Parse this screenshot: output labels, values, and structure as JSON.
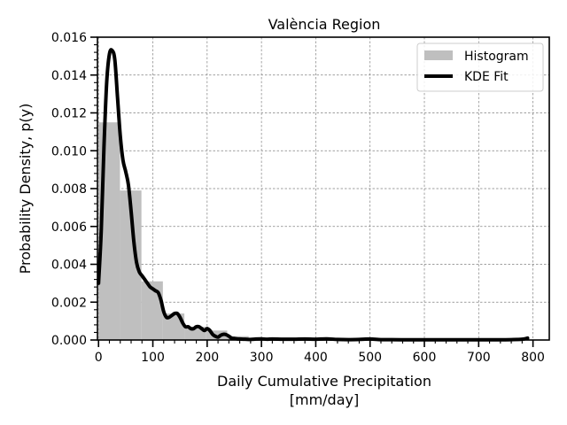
{
  "chart_data": {
    "type": "bar",
    "title": "València Region",
    "xlabel_line1": "Daily Cumulative Precipitation",
    "xlabel_line2": "[mm/day]",
    "ylabel": "Probability Density, p(y)",
    "xlim": [
      -2,
      830
    ],
    "ylim": [
      0,
      0.016
    ],
    "x_ticks": [
      0,
      100,
      200,
      300,
      400,
      500,
      600,
      700,
      800
    ],
    "x_tick_labels": [
      "0",
      "100",
      "200",
      "300",
      "400",
      "500",
      "600",
      "700",
      "800"
    ],
    "y_ticks": [
      0,
      0.002,
      0.004,
      0.006,
      0.008,
      0.01,
      0.012,
      0.014,
      0.016
    ],
    "y_tick_labels": [
      "0.000",
      "0.002",
      "0.004",
      "0.006",
      "0.008",
      "0.010",
      "0.012",
      "0.014",
      "0.016"
    ],
    "grid": true,
    "legend_position": "top-right",
    "histogram": {
      "name": "Histogram",
      "color": "#bfbfbf",
      "bins": [
        {
          "x0": 0,
          "x1": 39.5,
          "value": 0.0115
        },
        {
          "x0": 39.5,
          "x1": 79,
          "value": 0.0079
        },
        {
          "x0": 79,
          "x1": 118.5,
          "value": 0.0031
        },
        {
          "x0": 118.5,
          "x1": 158,
          "value": 0.0014
        },
        {
          "x0": 158,
          "x1": 197.5,
          "value": 0.0007
        },
        {
          "x0": 197.5,
          "x1": 237,
          "value": 0.0005
        },
        {
          "x0": 237,
          "x1": 276.5,
          "value": 0.0002
        },
        {
          "x0": 276.5,
          "x1": 316,
          "value": 0.0001
        },
        {
          "x0": 316,
          "x1": 355.5,
          "value": 5e-05
        },
        {
          "x0": 355.5,
          "x1": 395,
          "value": 4e-05
        },
        {
          "x0": 395,
          "x1": 434.5,
          "value": 5e-05
        },
        {
          "x0": 434.5,
          "x1": 474,
          "value": 2e-05
        },
        {
          "x0": 474,
          "x1": 513.5,
          "value": 3e-05
        },
        {
          "x0": 513.5,
          "x1": 553,
          "value": 1e-05
        },
        {
          "x0": 553,
          "x1": 592.5,
          "value": 1e-05
        },
        {
          "x0": 592.5,
          "x1": 632,
          "value": 1e-05
        },
        {
          "x0": 632,
          "x1": 671.5,
          "value": 1e-05
        },
        {
          "x0": 671.5,
          "x1": 711,
          "value": 1e-05
        },
        {
          "x0": 711,
          "x1": 750.5,
          "value": 1e-05
        },
        {
          "x0": 750.5,
          "x1": 790,
          "value": 1e-05
        }
      ]
    },
    "kde": {
      "name": "KDE Fit",
      "color": "#000000",
      "x": [
        0,
        5,
        10,
        15,
        20,
        25,
        30,
        35,
        40,
        45,
        50,
        55,
        60,
        65,
        70,
        75,
        80,
        85,
        90,
        95,
        100,
        105,
        110,
        115,
        120,
        125,
        130,
        135,
        140,
        145,
        150,
        155,
        160,
        165,
        170,
        175,
        180,
        185,
        190,
        195,
        200,
        205,
        210,
        215,
        220,
        225,
        230,
        235,
        240,
        245,
        250,
        255,
        260,
        270,
        280,
        290,
        300,
        310,
        320,
        340,
        360,
        380,
        400,
        420,
        440,
        460,
        480,
        500,
        520,
        540,
        560,
        580,
        600,
        620,
        640,
        660,
        680,
        700,
        720,
        740,
        760,
        780,
        790
      ],
      "y": [
        0.003,
        0.0058,
        0.0102,
        0.0136,
        0.0151,
        0.0153,
        0.0148,
        0.0128,
        0.0108,
        0.0095,
        0.0089,
        0.0082,
        0.0068,
        0.0052,
        0.0041,
        0.0036,
        0.0034,
        0.0032,
        0.003,
        0.0028,
        0.0027,
        0.0026,
        0.0025,
        0.0021,
        0.0015,
        0.0012,
        0.0012,
        0.0013,
        0.0014,
        0.0014,
        0.0012,
        0.0009,
        0.0007,
        0.0007,
        0.0006,
        0.0006,
        0.0007,
        0.0007,
        0.0006,
        0.0005,
        0.0006,
        0.0005,
        0.0003,
        0.0002,
        0.00015,
        0.00025,
        0.0003,
        0.00028,
        0.0002,
        0.0001,
        8e-05,
        6e-05,
        5e-05,
        4e-05,
        3e-05,
        5e-05,
        6e-05,
        4e-05,
        5e-05,
        4e-05,
        4e-05,
        5e-05,
        4e-05,
        6e-05,
        3e-05,
        2e-05,
        3e-05,
        5e-05,
        2e-05,
        2e-05,
        1e-05,
        1e-05,
        1e-05,
        1e-05,
        1e-05,
        1e-05,
        1e-05,
        1e-05,
        1e-05,
        1e-05,
        2e-05,
        4e-05,
        0.0001
      ]
    }
  }
}
